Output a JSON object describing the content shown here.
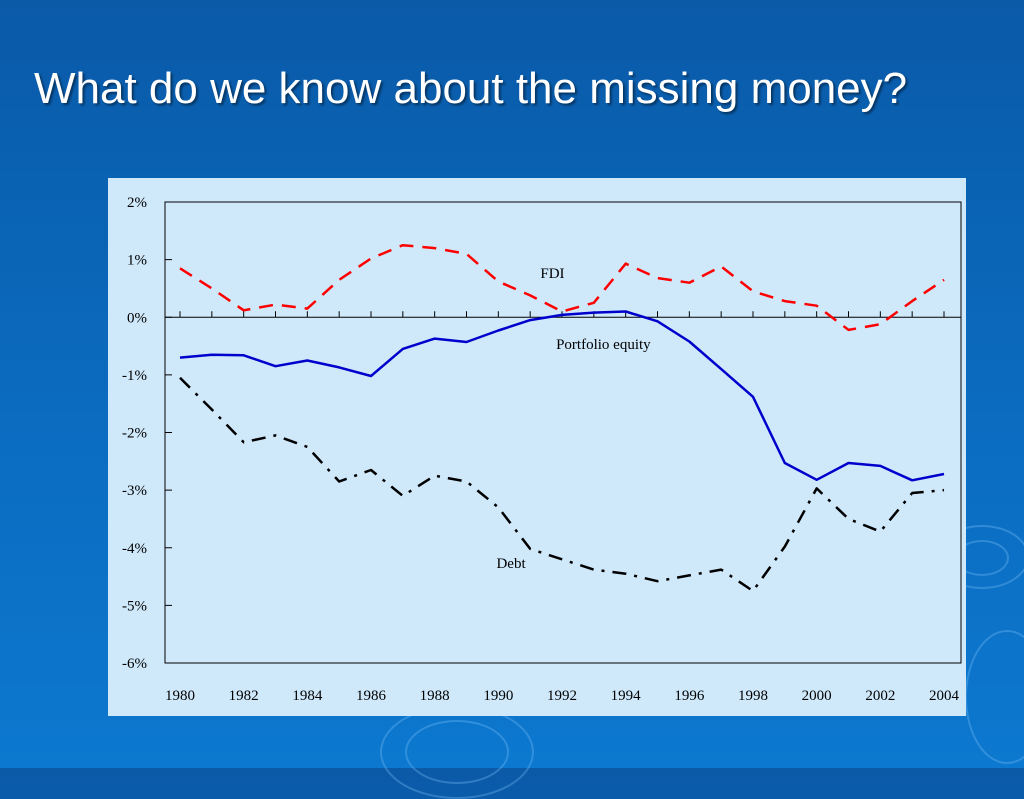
{
  "slide": {
    "title": "What do we know about the missing money?"
  },
  "colors": {
    "background": "#0b6cc0",
    "title_text": "#ffffff",
    "plot_background": "#cfe9fb",
    "fdi": "#ff0000",
    "portfolio_equity": "#0000cc",
    "debt": "#000000"
  },
  "chart_data": {
    "type": "line",
    "title": "",
    "xlabel": "",
    "ylabel": "",
    "x": [
      1980,
      1981,
      1982,
      1983,
      1984,
      1985,
      1986,
      1987,
      1988,
      1989,
      1990,
      1991,
      1992,
      1993,
      1994,
      1995,
      1996,
      1997,
      1998,
      1999,
      2000,
      2001,
      2002,
      2003,
      2004
    ],
    "xlim": [
      1980,
      2004
    ],
    "ylim": [
      -6,
      2
    ],
    "x_tick_labels": [
      "1980",
      "1982",
      "1984",
      "1986",
      "1988",
      "1990",
      "1992",
      "1994",
      "1996",
      "1998",
      "2000",
      "2002",
      "2004"
    ],
    "y_ticks": [
      2,
      1,
      0,
      -1,
      -2,
      -3,
      -4,
      -5,
      -6
    ],
    "y_tick_labels": [
      "2%",
      "1%",
      "0%",
      "-1%",
      "-2%",
      "-3%",
      "-4%",
      "-5%",
      "-6%"
    ],
    "grid": false,
    "zero_line": true,
    "series": [
      {
        "name": "FDI",
        "color": "#ff0000",
        "dash": "dashed",
        "values": [
          0.85,
          0.5,
          0.12,
          0.22,
          0.15,
          0.65,
          1.02,
          1.25,
          1.2,
          1.1,
          0.62,
          0.38,
          0.1,
          0.25,
          0.93,
          0.68,
          0.6,
          0.88,
          0.45,
          0.28,
          0.2,
          -0.22,
          -0.12,
          0.28,
          0.65
        ]
      },
      {
        "name": "Portfolio equity",
        "color": "#0000cc",
        "dash": "solid",
        "values": [
          -0.7,
          -0.65,
          -0.66,
          -0.85,
          -0.75,
          -0.87,
          -1.02,
          -0.55,
          -0.37,
          -0.43,
          -0.23,
          -0.05,
          0.04,
          0.08,
          0.1,
          -0.07,
          -0.42,
          -0.9,
          -1.38,
          -2.53,
          -2.82,
          -2.53,
          -2.58,
          -2.83,
          -2.72
        ]
      },
      {
        "name": "Debt",
        "color": "#000000",
        "dash": "dashdot",
        "values": [
          -1.05,
          -1.6,
          -2.17,
          -2.05,
          -2.25,
          -2.85,
          -2.65,
          -3.1,
          -2.75,
          -2.85,
          -3.3,
          -4.02,
          -4.2,
          -4.38,
          -4.45,
          -4.58,
          -4.48,
          -4.38,
          -4.75,
          -3.98,
          -2.97,
          -3.5,
          -3.72,
          -3.05,
          -3.0
        ]
      }
    ],
    "annotations": [
      "FDI",
      "Portfolio equity",
      "Debt"
    ]
  }
}
